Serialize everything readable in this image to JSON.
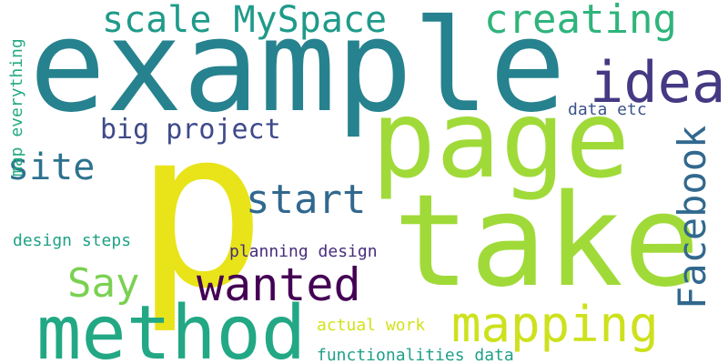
{
  "words": [
    {
      "text": "p",
      "color": "#e8e419"
    },
    {
      "text": "example",
      "color": "#26828e"
    },
    {
      "text": "take",
      "color": "#a0da39"
    },
    {
      "text": "page",
      "color": "#a0da39"
    },
    {
      "text": "method",
      "color": "#22a884"
    },
    {
      "text": "mapping",
      "color": "#cde11d"
    },
    {
      "text": "idea",
      "color": "#443983"
    },
    {
      "text": "creating",
      "color": "#2fb47c"
    },
    {
      "text": "Facebook",
      "color": "#31688e"
    },
    {
      "text": "scale MySpace",
      "color": "#1f9a8a"
    },
    {
      "text": "start",
      "color": "#31688e"
    },
    {
      "text": "wanted",
      "color": "#440154"
    },
    {
      "text": "Say",
      "color": "#7ad151"
    },
    {
      "text": "site",
      "color": "#2c728e"
    },
    {
      "text": "big project",
      "color": "#3e4a89"
    },
    {
      "text": "design steps",
      "color": "#1fa187"
    },
    {
      "text": "map everything",
      "color": "#23a983"
    },
    {
      "text": "planning design",
      "color": "#472d7b"
    },
    {
      "text": "data etc",
      "color": "#3b528b"
    },
    {
      "text": "actual work",
      "color": "#d2e21b"
    },
    {
      "text": "functionalities data",
      "color": "#1fa088"
    }
  ]
}
